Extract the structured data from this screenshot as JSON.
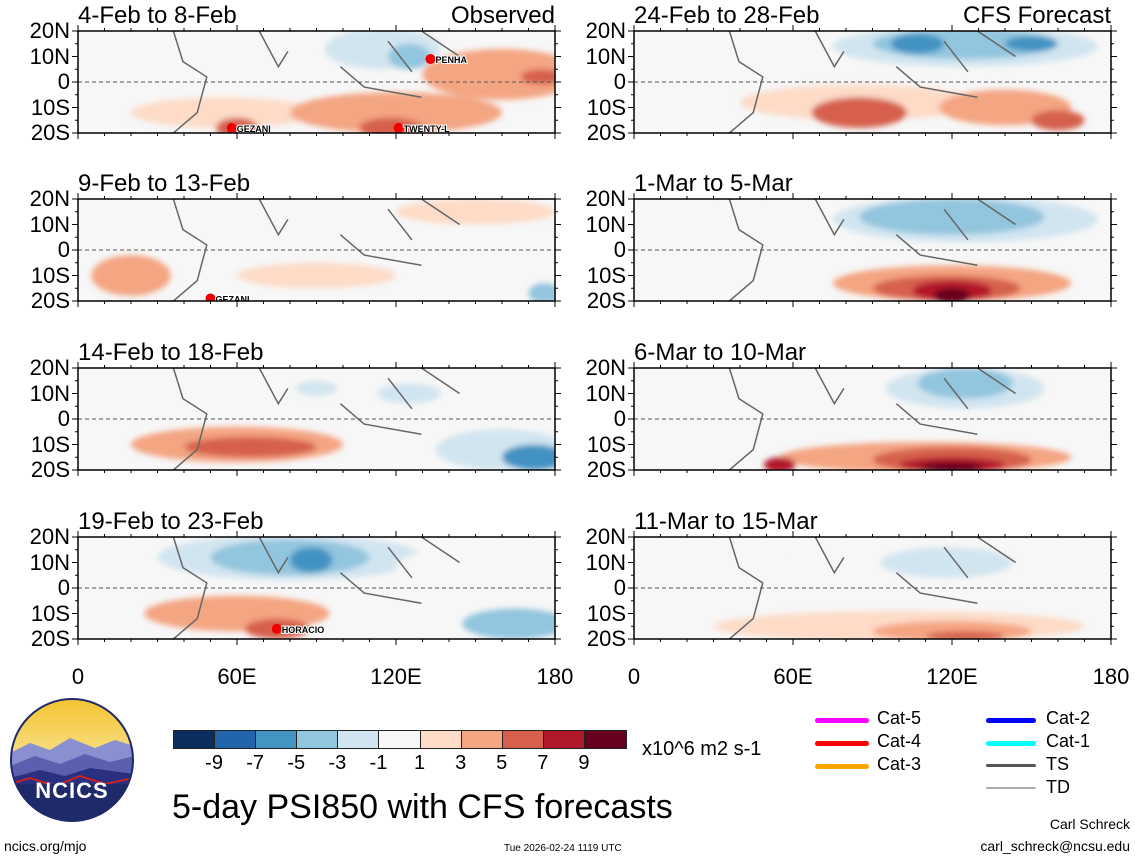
{
  "chart_data": {
    "type": "heatmap",
    "title": "5-day PSI850 with CFS forecasts",
    "units": "x10^6 m2 s-1",
    "xlim": [
      0,
      180
    ],
    "ylim": [
      -20,
      20
    ],
    "xticks": [
      "0",
      "60E",
      "120E",
      "180"
    ],
    "xtick_values": [
      0,
      60,
      120,
      180
    ],
    "yticks": [
      "20N",
      "10N",
      "0",
      "10S",
      "20S"
    ],
    "ytick_values": [
      20,
      10,
      0,
      -10,
      -20
    ],
    "colorbar": {
      "levels": [
        "-9",
        "-7",
        "-5",
        "-3",
        "-1",
        "1",
        "3",
        "5",
        "7",
        "9"
      ],
      "colors": [
        "#0a2f5e",
        "#2166ac",
        "#4393c3",
        "#92c5de",
        "#d1e5f0",
        "#f7f7f7",
        "#fddbc7",
        "#f4a582",
        "#d6604d",
        "#b2182b",
        "#67001f"
      ]
    },
    "panels": [
      {
        "title": "4-Feb to 8-Feb",
        "tag": "Observed",
        "col": 0,
        "row": 0,
        "storms": [
          {
            "name": "PENHA",
            "lon": 133,
            "lat": 9
          },
          {
            "name": "GEZANI",
            "lon": 58,
            "lat": -18
          },
          {
            "name": "TWENTY-L",
            "lon": 121,
            "lat": -18
          }
        ],
        "anomalies": [
          [
            30,
            15,
            35,
            6,
            -1
          ],
          [
            115,
            13,
            22,
            8,
            -3
          ],
          [
            125,
            10,
            8,
            5,
            -5
          ],
          [
            55,
            -12,
            35,
            6,
            1
          ],
          [
            160,
            3,
            30,
            10,
            3
          ],
          [
            120,
            -12,
            40,
            8,
            3
          ],
          [
            175,
            2,
            8,
            3,
            5
          ],
          [
            60,
            -18,
            8,
            4,
            5
          ],
          [
            118,
            -18,
            12,
            4,
            5
          ]
        ]
      },
      {
        "title": "9-Feb to 13-Feb",
        "tag": "",
        "col": 0,
        "row": 1,
        "storms": [
          {
            "name": "GEZANI",
            "lon": 50,
            "lat": -19
          }
        ],
        "anomalies": [
          [
            45,
            10,
            35,
            8,
            -1
          ],
          [
            110,
            5,
            25,
            8,
            -1
          ],
          [
            150,
            15,
            30,
            5,
            1
          ],
          [
            20,
            -10,
            15,
            8,
            3
          ],
          [
            90,
            -10,
            30,
            5,
            1
          ],
          [
            176,
            -17,
            6,
            4,
            -5
          ]
        ]
      },
      {
        "title": "14-Feb to 18-Feb",
        "tag": "",
        "col": 0,
        "row": 2,
        "storms": [],
        "anomalies": [
          [
            100,
            10,
            40,
            8,
            -1
          ],
          [
            90,
            12,
            8,
            3,
            -3
          ],
          [
            125,
            10,
            12,
            4,
            -3
          ],
          [
            160,
            -12,
            25,
            8,
            -3
          ],
          [
            172,
            -15,
            12,
            5,
            -7
          ],
          [
            60,
            -10,
            40,
            7,
            3
          ],
          [
            65,
            -11,
            25,
            4,
            5
          ]
        ]
      },
      {
        "title": "19-Feb to 23-Feb",
        "tag": "",
        "col": 0,
        "row": 3,
        "storms": [
          {
            "name": "HORACIO",
            "lon": 75,
            "lat": -16
          }
        ],
        "anomalies": [
          [
            80,
            12,
            50,
            9,
            -3
          ],
          [
            80,
            12,
            30,
            7,
            -5
          ],
          [
            88,
            11,
            8,
            5,
            -7
          ],
          [
            150,
            8,
            30,
            8,
            -1
          ],
          [
            165,
            -14,
            20,
            6,
            -5
          ],
          [
            60,
            -10,
            35,
            7,
            3
          ],
          [
            75,
            -16,
            12,
            4,
            5
          ]
        ]
      },
      {
        "title": "24-Feb to 28-Feb",
        "tag": "CFS Forecast",
        "col": 1,
        "row": 0,
        "storms": [],
        "anomalies": [
          [
            125,
            14,
            50,
            8,
            -3
          ],
          [
            125,
            15,
            35,
            6,
            -5
          ],
          [
            107,
            15,
            10,
            4,
            -7
          ],
          [
            150,
            15,
            10,
            3,
            -7
          ],
          [
            85,
            -8,
            45,
            7,
            1
          ],
          [
            85,
            -12,
            18,
            6,
            5
          ],
          [
            140,
            -10,
            25,
            7,
            3
          ],
          [
            160,
            -15,
            10,
            4,
            5
          ]
        ]
      },
      {
        "title": "1-Mar to 5-Mar",
        "tag": "",
        "col": 1,
        "row": 1,
        "storms": [],
        "anomalies": [
          [
            40,
            10,
            40,
            7,
            -1
          ],
          [
            125,
            12,
            50,
            9,
            -3
          ],
          [
            120,
            13,
            35,
            7,
            -5
          ],
          [
            120,
            -13,
            45,
            7,
            3
          ],
          [
            118,
            -15,
            28,
            5,
            5
          ],
          [
            120,
            -16,
            15,
            4,
            7
          ],
          [
            120,
            -18,
            7,
            3,
            9
          ]
        ]
      },
      {
        "title": "6-Mar to 10-Mar",
        "tag": "",
        "col": 1,
        "row": 2,
        "storms": [],
        "anomalies": [
          [
            110,
            8,
            60,
            10,
            -1
          ],
          [
            125,
            12,
            30,
            8,
            -3
          ],
          [
            125,
            14,
            18,
            6,
            -5
          ],
          [
            110,
            -15,
            55,
            6,
            3
          ],
          [
            120,
            -16,
            30,
            5,
            5
          ],
          [
            120,
            -18,
            20,
            3,
            7
          ],
          [
            120,
            -19,
            12,
            2,
            9
          ],
          [
            55,
            -18,
            6,
            3,
            7
          ]
        ]
      },
      {
        "title": "11-Mar to 15-Mar",
        "tag": "",
        "col": 1,
        "row": 3,
        "storms": [],
        "anomalies": [
          [
            115,
            8,
            55,
            10,
            -1
          ],
          [
            118,
            10,
            25,
            6,
            -3
          ],
          [
            100,
            -15,
            70,
            6,
            1
          ],
          [
            120,
            -17,
            30,
            4,
            3
          ],
          [
            125,
            -19,
            15,
            2,
            5
          ]
        ]
      }
    ]
  },
  "colorbar_units": "x10^6 m2 s-1",
  "legend": [
    {
      "label": "Cat-5",
      "color": "#ff00ff"
    },
    {
      "label": "Cat-4",
      "color": "#ff0000"
    },
    {
      "label": "Cat-3",
      "color": "#ffa500"
    },
    {
      "label": "Cat-2",
      "color": "#0000ff"
    },
    {
      "label": "Cat-1",
      "color": "#00ffff"
    },
    {
      "label": "TS",
      "color": "#555555"
    },
    {
      "label": "TD",
      "color": "#aaaaaa"
    }
  ],
  "logo": {
    "text": "NCICS"
  },
  "footer": {
    "url": "ncics.org/mjo",
    "timestamp": "Tue 2026-02-24 1119 UTC",
    "author": "Carl Schreck",
    "email": "carl_schreck@ncsu.edu"
  }
}
